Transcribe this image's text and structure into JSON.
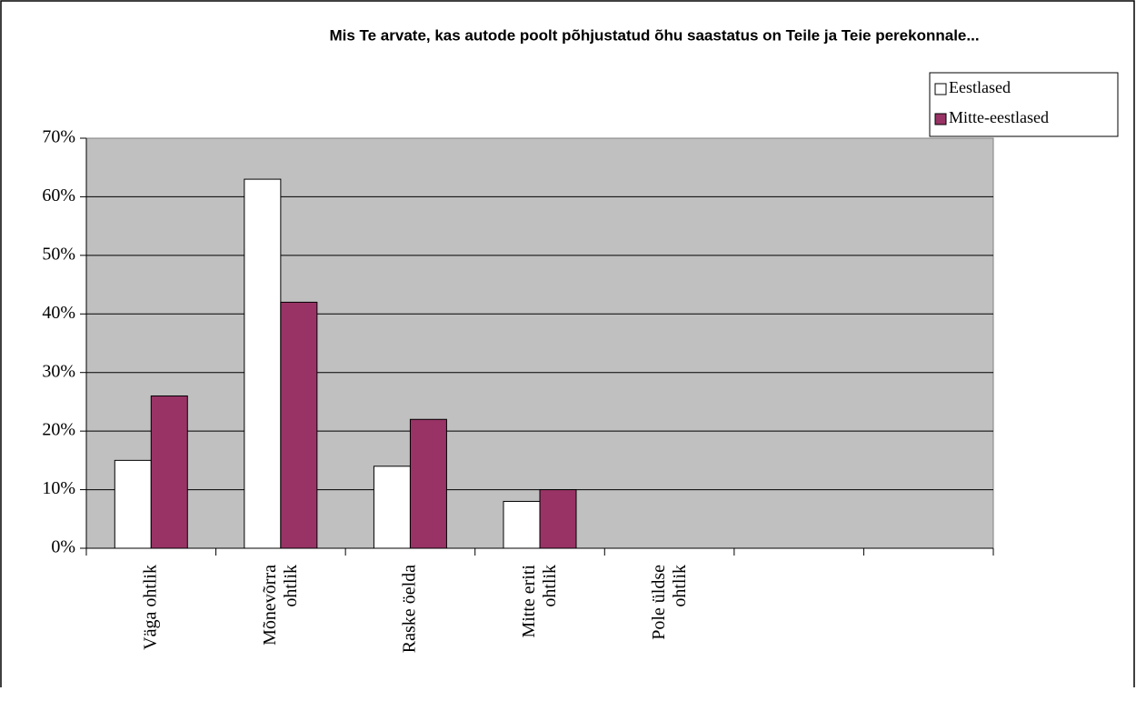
{
  "chart_data": {
    "type": "bar",
    "title": "Mis Te arvate, kas autode poolt põhjustatud õhu saastatus on Teile ja Teie perekonnale...",
    "categories": [
      "Väga ohtlik",
      "Mõnevõrra\nohtlik",
      "Raske öelda",
      "Mitte eriti\nohtlik",
      "Pole üldse\nohtlik",
      null,
      null
    ],
    "series": [
      {
        "name": "Eestlased",
        "color": "#ffffff",
        "values": [
          15,
          63,
          14,
          8,
          0,
          null,
          null
        ]
      },
      {
        "name": "Mitte-eestlased",
        "color": "#993366",
        "values": [
          26,
          42,
          22,
          10,
          0,
          null,
          null
        ]
      }
    ],
    "ylim": [
      0,
      70
    ],
    "yticks": [
      {
        "value": 0,
        "label": "0%"
      },
      {
        "value": 10,
        "label": "10%"
      },
      {
        "value": 20,
        "label": "20%"
      },
      {
        "value": 30,
        "label": "30%"
      },
      {
        "value": 40,
        "label": "40%"
      },
      {
        "value": 50,
        "label": "50%"
      },
      {
        "value": 60,
        "label": "60%"
      },
      {
        "value": 70,
        "label": "70%"
      }
    ],
    "grid": true,
    "legend": "top-right"
  }
}
